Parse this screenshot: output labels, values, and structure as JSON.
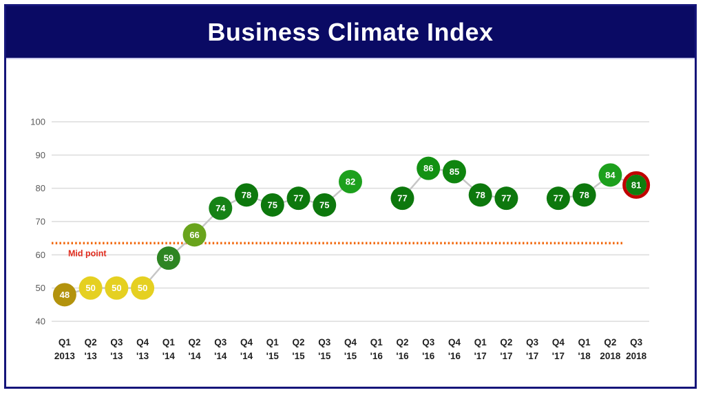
{
  "header": {
    "title": "Business Climate Index"
  },
  "colors": {
    "banner_bg": "#0a0a64",
    "frame_border": "#15157a",
    "gridline": "#dcdcdc",
    "series_line": "#c6c6c6",
    "midpoint_line": "#f26a10",
    "midpoint_label_color": "#e02b1d",
    "marker_text": "#ffffff",
    "y_axis_text": "#595959",
    "x_axis_text": "#1f1f1f",
    "highlight_ring": "#c00000"
  },
  "chart_data": {
    "type": "line",
    "title": "Business Climate Index",
    "categories": [
      {
        "q": "Q1",
        "yr": "2013"
      },
      {
        "q": "Q2",
        "yr": "'13"
      },
      {
        "q": "Q3",
        "yr": "'13"
      },
      {
        "q": "Q4",
        "yr": "'13"
      },
      {
        "q": "Q1",
        "yr": "'14"
      },
      {
        "q": "Q2",
        "yr": "'14"
      },
      {
        "q": "Q3",
        "yr": "'14"
      },
      {
        "q": "Q4",
        "yr": "'14"
      },
      {
        "q": "Q1",
        "yr": "'15"
      },
      {
        "q": "Q2",
        "yr": "'15"
      },
      {
        "q": "Q3",
        "yr": "'15"
      },
      {
        "q": "Q4",
        "yr": "'15"
      },
      {
        "q": "Q1",
        "yr": "'16"
      },
      {
        "q": "Q2",
        "yr": "'16"
      },
      {
        "q": "Q3",
        "yr": "'16"
      },
      {
        "q": "Q4",
        "yr": "'16"
      },
      {
        "q": "Q1",
        "yr": "'17"
      },
      {
        "q": "Q2",
        "yr": "'17"
      },
      {
        "q": "Q3",
        "yr": "'17"
      },
      {
        "q": "Q4",
        "yr": "'17"
      },
      {
        "q": "Q1",
        "yr": "'18"
      },
      {
        "q": "Q2",
        "yr": "2018"
      },
      {
        "q": "Q3",
        "yr": "2018"
      }
    ],
    "values": [
      48,
      50,
      50,
      50,
      59,
      66,
      74,
      78,
      75,
      77,
      75,
      82,
      null,
      77,
      86,
      85,
      78,
      77,
      null,
      77,
      78,
      84,
      81
    ],
    "point_colors": [
      "#b3930d",
      "#e5d021",
      "#e5d021",
      "#e5d021",
      "#2e8523",
      "#69a41c",
      "#168216",
      "#0d780d",
      "#0d780d",
      "#0d780d",
      "#0d780d",
      "#1da01d",
      null,
      "#0d780d",
      "#139113",
      "#0f850f",
      "#0d780d",
      "#0d780d",
      null,
      "#0d780d",
      "#0d780d",
      "#1da01d",
      "#0e7e0e"
    ],
    "ylim": [
      40,
      100
    ],
    "yticks": [
      100,
      90,
      80,
      70,
      60,
      50,
      40
    ],
    "grid": true,
    "legend": "none",
    "midpoint": {
      "value": 63.5,
      "label": "Mid point"
    },
    "highlight_last_point": true
  }
}
